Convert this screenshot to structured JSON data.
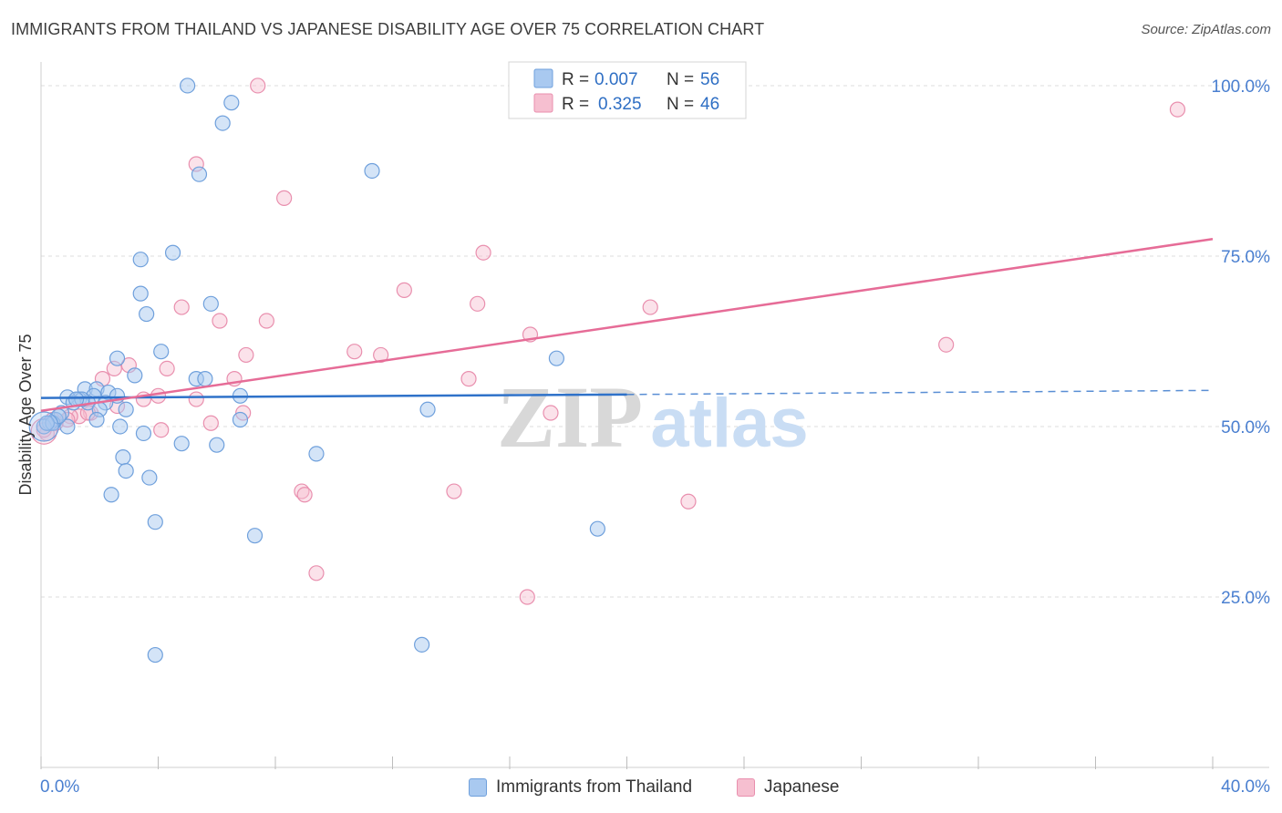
{
  "header": {
    "title": "IMMIGRANTS FROM THAILAND VS JAPANESE DISABILITY AGE OVER 75 CORRELATION CHART",
    "source": "Source: ZipAtlas.com"
  },
  "watermark": {
    "zip": "ZIP",
    "atlas": "atlas"
  },
  "stats_legend": [
    {
      "r_label": "R =",
      "r_value": "0.007",
      "n_label": "N =",
      "n_value": "56",
      "color": "#6fa8e8"
    },
    {
      "r_label": "R =",
      "r_value": "0.325",
      "n_label": "N =",
      "n_value": "46",
      "color": "#f29bb7"
    }
  ],
  "colors": {
    "blue_fill": "#a9c9f0",
    "blue_stroke": "#6fa0dc",
    "blue_line": "#2f72c9",
    "pink_fill": "#f6bfd0",
    "pink_stroke": "#e98fae",
    "pink_line": "#e66c97",
    "axis_text": "#4a7fd0",
    "grid": "#dcdcdc"
  },
  "chart_data": {
    "type": "scatter",
    "title": "IMMIGRANTS FROM THAILAND VS JAPANESE DISABILITY AGE OVER 75 CORRELATION CHART",
    "xlabel": "",
    "ylabel": "Disability Age Over 75",
    "xlim": [
      0,
      40
    ],
    "ylim": [
      0,
      102
    ],
    "x_tick_labels": [
      "0.0%",
      "40.0%"
    ],
    "y_ticks": [
      25,
      50,
      75,
      100
    ],
    "y_tick_labels": [
      "25.0%",
      "50.0%",
      "75.0%",
      "100.0%"
    ],
    "grid": "horizontal dashed",
    "legend_position": "bottom",
    "series": [
      {
        "name": "Immigrants from Thailand",
        "color": "#6fa8e8",
        "points": [
          [
            5.0,
            100.0
          ],
          [
            6.5,
            97.5
          ],
          [
            6.2,
            94.5
          ],
          [
            5.4,
            87.0
          ],
          [
            11.3,
            87.5
          ],
          [
            4.5,
            75.5
          ],
          [
            3.4,
            74.5
          ],
          [
            3.4,
            69.5
          ],
          [
            3.6,
            66.5
          ],
          [
            5.8,
            68.0
          ],
          [
            4.1,
            61.0
          ],
          [
            2.6,
            60.0
          ],
          [
            17.6,
            60.0
          ],
          [
            3.2,
            57.5
          ],
          [
            5.3,
            57.0
          ],
          [
            5.6,
            57.0
          ],
          [
            1.5,
            55.5
          ],
          [
            1.9,
            55.5
          ],
          [
            2.3,
            55.0
          ],
          [
            1.8,
            54.5
          ],
          [
            1.3,
            54.0
          ],
          [
            0.9,
            54.3
          ],
          [
            1.6,
            53.5
          ],
          [
            1.1,
            53.5
          ],
          [
            2.2,
            53.5
          ],
          [
            6.8,
            54.5
          ],
          [
            2.0,
            52.5
          ],
          [
            2.9,
            52.5
          ],
          [
            13.2,
            52.5
          ],
          [
            0.7,
            52.0
          ],
          [
            0.5,
            51.0
          ],
          [
            0.3,
            50.5
          ],
          [
            0.9,
            50.0
          ],
          [
            0.1,
            50.0
          ],
          [
            0.4,
            50.5
          ],
          [
            2.7,
            50.0
          ],
          [
            6.8,
            51.0
          ],
          [
            3.5,
            49.0
          ],
          [
            4.8,
            47.5
          ],
          [
            6.0,
            47.3
          ],
          [
            2.8,
            45.5
          ],
          [
            9.4,
            46.0
          ],
          [
            2.9,
            43.5
          ],
          [
            3.7,
            42.5
          ],
          [
            2.4,
            40.0
          ],
          [
            3.9,
            36.0
          ],
          [
            19.0,
            35.0
          ],
          [
            7.3,
            34.0
          ],
          [
            13.0,
            18.0
          ],
          [
            3.9,
            16.5
          ],
          [
            1.4,
            54.0
          ],
          [
            0.6,
            51.5
          ],
          [
            0.2,
            50.5
          ],
          [
            1.2,
            54.0
          ],
          [
            2.6,
            54.5
          ],
          [
            1.9,
            51.0
          ]
        ]
      },
      {
        "name": "Japanese",
        "color": "#f29bb7",
        "points": [
          [
            7.4,
            100.0
          ],
          [
            23.3,
            100.0
          ],
          [
            38.8,
            96.5
          ],
          [
            5.3,
            88.5
          ],
          [
            8.3,
            83.5
          ],
          [
            15.1,
            75.5
          ],
          [
            12.4,
            70.0
          ],
          [
            14.9,
            68.0
          ],
          [
            20.8,
            67.5
          ],
          [
            4.8,
            67.5
          ],
          [
            6.1,
            65.5
          ],
          [
            7.7,
            65.5
          ],
          [
            16.7,
            63.5
          ],
          [
            30.9,
            62.0
          ],
          [
            10.7,
            61.0
          ],
          [
            11.6,
            60.5
          ],
          [
            7.0,
            60.5
          ],
          [
            3.0,
            59.0
          ],
          [
            4.3,
            58.5
          ],
          [
            2.5,
            58.5
          ],
          [
            14.6,
            57.0
          ],
          [
            6.6,
            57.0
          ],
          [
            2.1,
            57.0
          ],
          [
            4.0,
            54.5
          ],
          [
            5.3,
            54.0
          ],
          [
            3.5,
            54.0
          ],
          [
            2.6,
            53.0
          ],
          [
            17.4,
            52.0
          ],
          [
            6.9,
            52.0
          ],
          [
            1.7,
            52.0
          ],
          [
            1.3,
            51.5
          ],
          [
            1.0,
            51.5
          ],
          [
            1.6,
            52.0
          ],
          [
            0.9,
            51.0
          ],
          [
            0.4,
            51.0
          ],
          [
            0.2,
            49.0
          ],
          [
            0.1,
            49.5
          ],
          [
            5.8,
            50.5
          ],
          [
            4.1,
            49.5
          ],
          [
            8.9,
            40.5
          ],
          [
            9.0,
            40.0
          ],
          [
            14.1,
            40.5
          ],
          [
            22.1,
            39.0
          ],
          [
            9.4,
            28.5
          ],
          [
            16.6,
            25.0
          ],
          [
            0.5,
            50.5
          ]
        ]
      }
    ],
    "trend_lines": [
      {
        "series": "Immigrants from Thailand",
        "x_solid": [
          0,
          20
        ],
        "y_solid": [
          54.2,
          54.7
        ],
        "x_dashed": [
          20,
          40
        ],
        "y_dashed": [
          54.7,
          55.3
        ]
      },
      {
        "series": "Japanese",
        "x": [
          0,
          40
        ],
        "y": [
          52.3,
          77.5
        ]
      }
    ]
  }
}
